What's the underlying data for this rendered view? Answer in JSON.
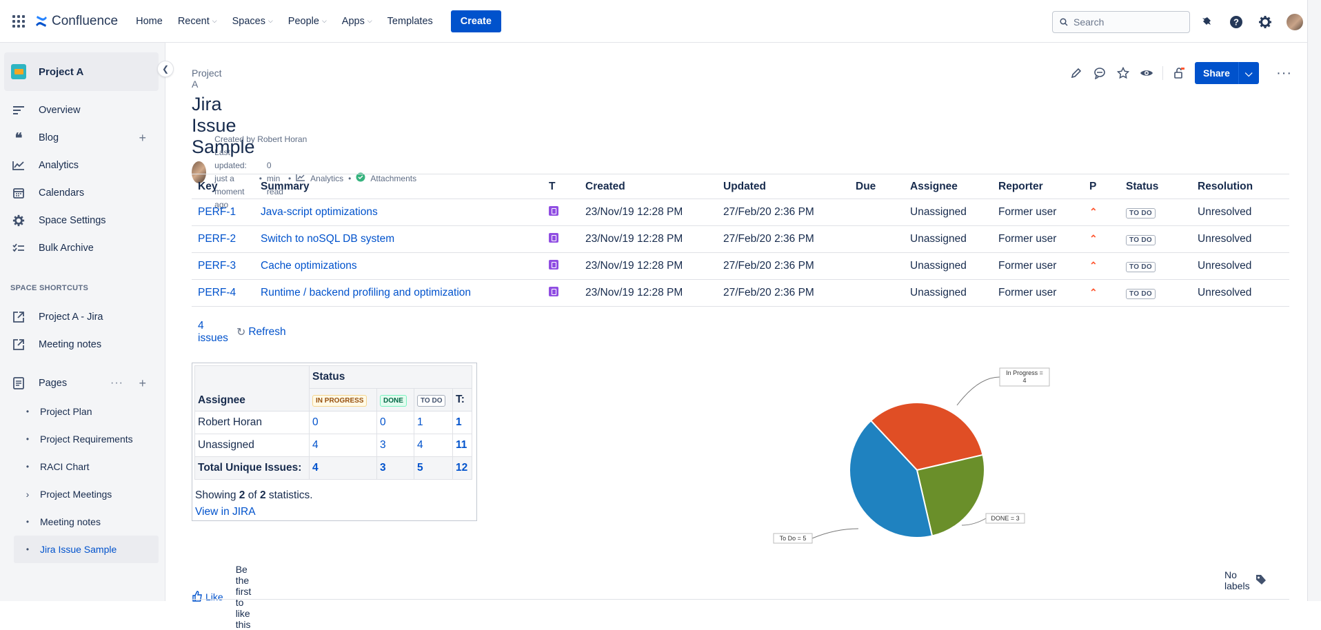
{
  "topbar": {
    "app_name": "Confluence",
    "nav": [
      {
        "label": "Home",
        "dropdown": false
      },
      {
        "label": "Recent",
        "dropdown": true
      },
      {
        "label": "Spaces",
        "dropdown": true
      },
      {
        "label": "People",
        "dropdown": true
      },
      {
        "label": "Apps",
        "dropdown": true
      },
      {
        "label": "Templates",
        "dropdown": false
      }
    ],
    "create_label": "Create",
    "search_placeholder": "Search"
  },
  "sidebar": {
    "space_name": "Project A",
    "items": [
      {
        "label": "Overview",
        "icon": "overview-icon"
      },
      {
        "label": "Blog",
        "icon": "blog-icon"
      },
      {
        "label": "Analytics",
        "icon": "analytics-icon"
      },
      {
        "label": "Calendars",
        "icon": "calendar-icon"
      },
      {
        "label": "Space Settings",
        "icon": "gear-icon"
      },
      {
        "label": "Bulk Archive",
        "icon": "archive-icon"
      }
    ],
    "shortcuts_heading": "SPACE SHORTCUTS",
    "shortcuts": [
      "Project A - Jira",
      "Meeting notes"
    ],
    "pages_label": "Pages",
    "pages": [
      "Project Plan",
      "Project Requirements",
      "RACI Chart",
      "Project Meetings",
      "Meeting notes",
      "Jira Issue Sample"
    ]
  },
  "page": {
    "breadcrumb": "Project A",
    "title": "Jira Issue Sample",
    "share_label": "Share",
    "byline": {
      "created_by": "Created by Robert Horan",
      "last_updated": "Last updated: just a moment ago",
      "read_time": "0 min read",
      "analytics": "Analytics",
      "attachments": "Attachments"
    }
  },
  "issues": {
    "headers": [
      "Key",
      "Summary",
      "T",
      "Created",
      "Updated",
      "Due",
      "Assignee",
      "Reporter",
      "P",
      "Status",
      "Resolution"
    ],
    "rows": [
      {
        "key": "PERF-1",
        "summary": "Java-script optimizations",
        "created": "23/Nov/19 12:28 PM",
        "updated": "27/Feb/20 2:36 PM",
        "due": "",
        "assignee": "Unassigned",
        "reporter": "Former user",
        "status": "TO DO",
        "resolution": "Unresolved"
      },
      {
        "key": "PERF-2",
        "summary": "Switch to noSQL DB system",
        "created": "23/Nov/19 12:28 PM",
        "updated": "27/Feb/20 2:36 PM",
        "due": "",
        "assignee": "Unassigned",
        "reporter": "Former user",
        "status": "TO DO",
        "resolution": "Unresolved"
      },
      {
        "key": "PERF-3",
        "summary": "Cache optimizations",
        "created": "23/Nov/19 12:28 PM",
        "updated": "27/Feb/20 2:36 PM",
        "due": "",
        "assignee": "Unassigned",
        "reporter": "Former user",
        "status": "TO DO",
        "resolution": "Unresolved"
      },
      {
        "key": "PERF-4",
        "summary": "Runtime / backend profiling and optimization",
        "created": "23/Nov/19 12:28 PM",
        "updated": "27/Feb/20 2:36 PM",
        "due": "",
        "assignee": "Unassigned",
        "reporter": "Former user",
        "status": "TO DO",
        "resolution": "Unresolved"
      }
    ],
    "count_label": "4 issues",
    "refresh_label": "Refresh"
  },
  "stats": {
    "status_header": "Status",
    "assignee_header": "Assignee",
    "col_inprogress": "IN PROGRESS",
    "col_done": "DONE",
    "col_todo": "TO DO",
    "col_total": "T:",
    "rows": [
      {
        "name": "Robert Horan",
        "inprogress": "0",
        "done": "0",
        "todo": "1",
        "total": "1"
      },
      {
        "name": "Unassigned",
        "inprogress": "4",
        "done": "3",
        "todo": "4",
        "total": "11"
      },
      {
        "name": "Total Unique Issues:",
        "inprogress": "4",
        "done": "3",
        "todo": "5",
        "total": "12"
      }
    ],
    "showing_prefix": "Showing ",
    "showing_a": "2",
    "showing_mid": " of ",
    "showing_b": "2",
    "showing_suffix": " statistics.",
    "view_link": "View in JIRA"
  },
  "chart_data": {
    "type": "pie",
    "slices": [
      {
        "label": "In Progress = 4",
        "value": 4,
        "color": "#e04e25"
      },
      {
        "label": "DONE = 3",
        "value": 3,
        "color": "#6a8f2a"
      },
      {
        "label": "To Do = 5",
        "value": 5,
        "color": "#1f82c0"
      }
    ]
  },
  "footer": {
    "like_label": "Like",
    "like_text": "Be the first to like this",
    "labels_text": "No labels"
  },
  "colors": {
    "brand": "#0052cc",
    "priority": "#ff5630"
  }
}
